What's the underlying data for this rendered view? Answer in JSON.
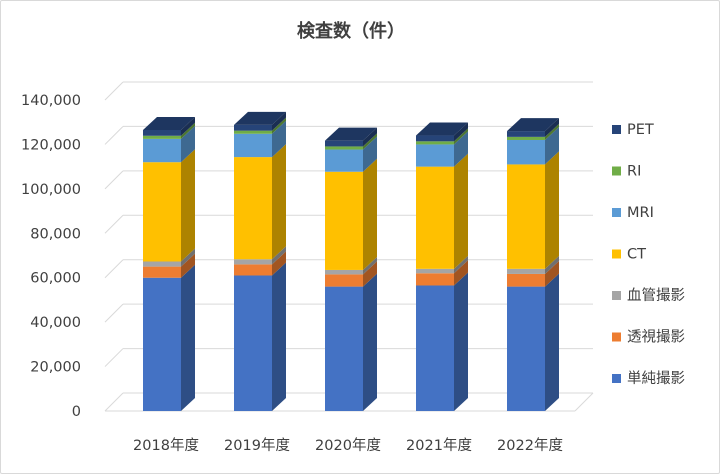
{
  "chart_data": {
    "type": "bar",
    "stacked": true,
    "style": "3d-column",
    "title": "検査数（件）",
    "xlabel": "",
    "ylabel": "",
    "categories": [
      "2018年度",
      "2019年度",
      "2020年度",
      "2021年度",
      "2022年度"
    ],
    "ylim": [
      0,
      140000
    ],
    "yticks": [
      0,
      20000,
      40000,
      60000,
      80000,
      100000,
      120000,
      140000
    ],
    "ytick_labels": [
      "0",
      "20,000",
      "40,000",
      "60,000",
      "80,000",
      "100,000",
      "120,000",
      "140,000"
    ],
    "grid": true,
    "legend_position": "right",
    "series": [
      {
        "name": "単純撮影",
        "color": "#4472c4",
        "values": [
          60000,
          61000,
          56000,
          56500,
          56000
        ]
      },
      {
        "name": "透視撮影",
        "color": "#ed7d31",
        "values": [
          5000,
          5000,
          5500,
          5500,
          5700
        ]
      },
      {
        "name": "血管撮影",
        "color": "#a5a5a5",
        "values": [
          2300,
          2300,
          2000,
          2000,
          2300
        ]
      },
      {
        "name": "CT",
        "color": "#ffc000",
        "values": [
          44700,
          46000,
          44200,
          46000,
          47000
        ]
      },
      {
        "name": "MRI",
        "color": "#5b9bd5",
        "values": [
          10500,
          10500,
          10000,
          10000,
          11000
        ]
      },
      {
        "name": "RI",
        "color": "#70ad47",
        "values": [
          1400,
          1400,
          1400,
          1400,
          1400
        ]
      },
      {
        "name": "PET",
        "color": "#264478",
        "values": [
          2600,
          2600,
          2600,
          2600,
          2600
        ]
      }
    ]
  }
}
